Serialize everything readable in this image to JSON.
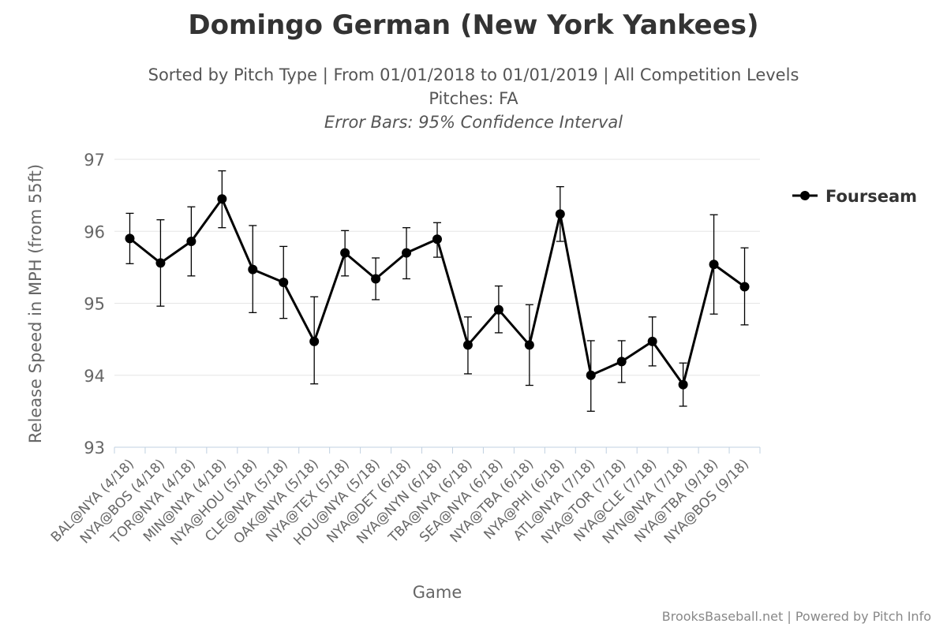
{
  "chart_data": {
    "type": "line",
    "title": "Domingo German (New York Yankees)",
    "subtitle": "Sorted by Pitch Type | From 01/01/2018 to 01/01/2019 | All Competition Levels",
    "subtitle2": "Pitches: FA",
    "subtitle3": "Error Bars: 95% Confidence Interval",
    "xlabel": "Game",
    "ylabel": "Release Speed in MPH (from 55ft)",
    "ylim": [
      93,
      97
    ],
    "yticks": [
      93,
      94,
      95,
      96,
      97
    ],
    "grid": true,
    "legend_position": "top-right",
    "categories": [
      "BAL@NYA (4/18)",
      "NYA@BOS (4/18)",
      "TOR@NYA (4/18)",
      "MIN@NYA (4/18)",
      "NYA@HOU (5/18)",
      "CLE@NYA (5/18)",
      "OAK@NYA (5/18)",
      "NYA@TEX (5/18)",
      "HOU@NYA (5/18)",
      "NYA@DET (6/18)",
      "NYA@NYN (6/18)",
      "TBA@NYA (6/18)",
      "SEA@NYA (6/18)",
      "NYA@TBA (6/18)",
      "NYA@PHI (6/18)",
      "ATL@NYA (7/18)",
      "NYA@TOR (7/18)",
      "NYA@CLE (7/18)",
      "NYN@NYA (7/18)",
      "NYA@TBA (9/18)",
      "NYA@BOS (9/18)"
    ],
    "series": [
      {
        "name": "Fourseam",
        "color": "#000000",
        "values": [
          95.9,
          95.56,
          95.86,
          96.45,
          95.47,
          95.29,
          94.47,
          95.7,
          95.34,
          95.7,
          95.89,
          94.42,
          94.91,
          94.42,
          96.24,
          94.0,
          94.19,
          94.47,
          93.87,
          95.54,
          95.23
        ],
        "error_low": [
          95.55,
          94.96,
          95.38,
          96.05,
          94.87,
          94.79,
          93.88,
          95.38,
          95.05,
          95.34,
          95.64,
          94.02,
          94.59,
          93.86,
          95.86,
          93.5,
          93.9,
          94.13,
          93.57,
          94.85,
          94.7
        ],
        "error_high": [
          96.25,
          96.16,
          96.34,
          96.84,
          96.08,
          95.79,
          95.09,
          96.01,
          95.63,
          96.05,
          96.12,
          94.81,
          95.24,
          94.98,
          96.62,
          94.48,
          94.48,
          94.81,
          94.17,
          96.23,
          95.77
        ]
      }
    ],
    "credits": "BrooksBaseball.net | Powered by Pitch Info"
  }
}
